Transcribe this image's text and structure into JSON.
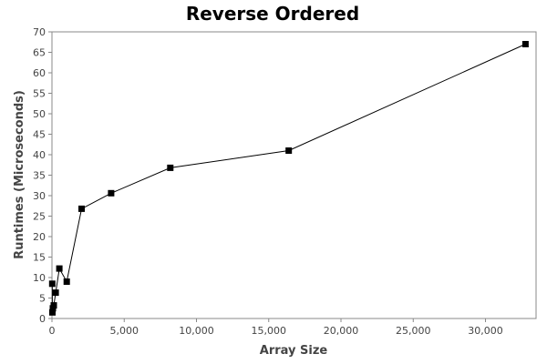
{
  "chart_data": {
    "type": "line",
    "title": "Reverse Ordered",
    "xlabel": "Array Size",
    "ylabel": "Runtimes (Microseconds)",
    "xlim": [
      0,
      33500
    ],
    "ylim": [
      0,
      70
    ],
    "grid": false,
    "x_ticks": [
      0,
      5000,
      10000,
      15000,
      20000,
      25000,
      30000
    ],
    "x_tick_labels": [
      "0",
      "5,000",
      "10,000",
      "15,000",
      "20,000",
      "25,000",
      "30,000"
    ],
    "y_ticks": [
      0,
      5,
      10,
      15,
      20,
      25,
      30,
      35,
      40,
      45,
      50,
      55,
      60,
      65,
      70
    ],
    "y_tick_labels": [
      "0",
      "5",
      "10",
      "15",
      "20",
      "25",
      "30",
      "35",
      "40",
      "45",
      "50",
      "55",
      "60",
      "65",
      "70"
    ],
    "series": [
      {
        "x": [
          16,
          32,
          64,
          128,
          256,
          512,
          1024,
          2048,
          4096,
          8192,
          16384,
          32768
        ],
        "y": [
          8.5,
          1.5,
          2.5,
          3.2,
          6.3,
          12.2,
          9.0,
          26.8,
          30.6,
          36.8,
          41.0,
          67.0
        ]
      }
    ],
    "colors": {
      "line": "#000000",
      "marker": "#000000",
      "frame": "#888888"
    }
  }
}
